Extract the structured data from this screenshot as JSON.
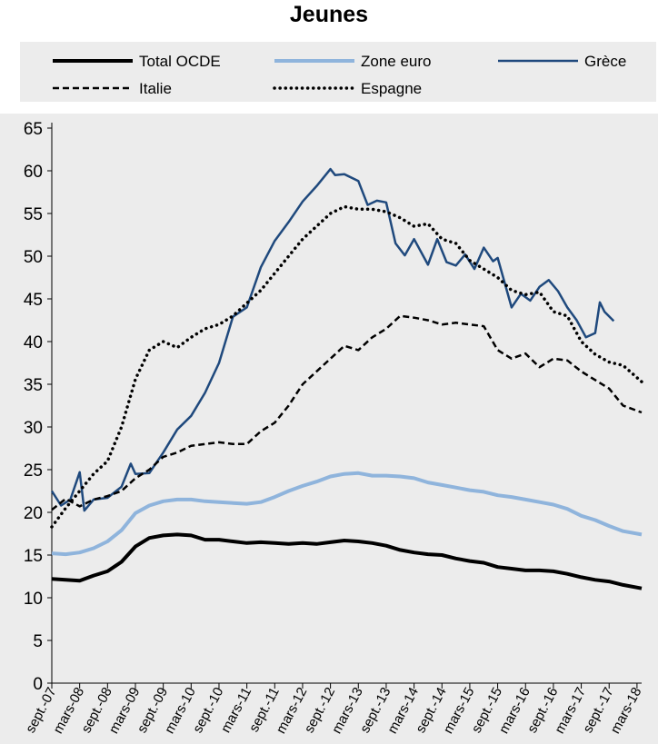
{
  "chart_data": {
    "type": "line",
    "title": "Jeunes",
    "xlabel": "",
    "ylabel": "",
    "ylim": [
      0,
      65
    ],
    "yticks": [
      0,
      5,
      10,
      15,
      20,
      25,
      30,
      35,
      40,
      45,
      50,
      55,
      60,
      65
    ],
    "grid": false,
    "legend_position": "top",
    "x_tick_labels": [
      "sept.-07",
      "mars-08",
      "sept.-08",
      "mars-09",
      "sept.-09",
      "mars-10",
      "sept.-10",
      "mars-11",
      "sept.-11",
      "mars-12",
      "sept.-12",
      "mars-13",
      "sept.-13",
      "mars-14",
      "sept.-14",
      "mars-15",
      "sept.-15",
      "mars-16",
      "sept.-16",
      "mars-17",
      "sept.-17",
      "mars-18"
    ],
    "x_start": "2007-09",
    "x_end": "2018-04",
    "series": [
      {
        "name": "Total OCDE",
        "color": "#000000",
        "style": "solid",
        "weight": "thick",
        "points": [
          [
            "2007-09",
            12.2
          ],
          [
            "2007-12",
            12.1
          ],
          [
            "2008-03",
            12.0
          ],
          [
            "2008-06",
            12.6
          ],
          [
            "2008-09",
            13.1
          ],
          [
            "2008-12",
            14.2
          ],
          [
            "2009-03",
            16.0
          ],
          [
            "2009-06",
            17.0
          ],
          [
            "2009-09",
            17.3
          ],
          [
            "2009-12",
            17.4
          ],
          [
            "2010-03",
            17.3
          ],
          [
            "2010-06",
            16.8
          ],
          [
            "2010-09",
            16.8
          ],
          [
            "2010-12",
            16.6
          ],
          [
            "2011-03",
            16.4
          ],
          [
            "2011-06",
            16.5
          ],
          [
            "2011-09",
            16.4
          ],
          [
            "2011-12",
            16.3
          ],
          [
            "2012-03",
            16.4
          ],
          [
            "2012-06",
            16.3
          ],
          [
            "2012-09",
            16.5
          ],
          [
            "2012-12",
            16.7
          ],
          [
            "2013-03",
            16.6
          ],
          [
            "2013-06",
            16.4
          ],
          [
            "2013-09",
            16.1
          ],
          [
            "2013-12",
            15.6
          ],
          [
            "2014-03",
            15.3
          ],
          [
            "2014-06",
            15.1
          ],
          [
            "2014-09",
            15.0
          ],
          [
            "2014-12",
            14.6
          ],
          [
            "2015-03",
            14.3
          ],
          [
            "2015-06",
            14.1
          ],
          [
            "2015-09",
            13.6
          ],
          [
            "2015-12",
            13.4
          ],
          [
            "2016-03",
            13.2
          ],
          [
            "2016-06",
            13.2
          ],
          [
            "2016-09",
            13.1
          ],
          [
            "2016-12",
            12.8
          ],
          [
            "2017-03",
            12.4
          ],
          [
            "2017-06",
            12.1
          ],
          [
            "2017-09",
            11.9
          ],
          [
            "2017-12",
            11.5
          ],
          [
            "2018-04",
            11.1
          ]
        ]
      },
      {
        "name": "Zone euro",
        "color": "#8fb4dc",
        "style": "solid",
        "weight": "thick",
        "points": [
          [
            "2007-09",
            15.2
          ],
          [
            "2007-12",
            15.1
          ],
          [
            "2008-03",
            15.3
          ],
          [
            "2008-06",
            15.8
          ],
          [
            "2008-09",
            16.6
          ],
          [
            "2008-12",
            17.9
          ],
          [
            "2009-03",
            19.9
          ],
          [
            "2009-06",
            20.8
          ],
          [
            "2009-09",
            21.3
          ],
          [
            "2009-12",
            21.5
          ],
          [
            "2010-03",
            21.5
          ],
          [
            "2010-06",
            21.3
          ],
          [
            "2010-09",
            21.2
          ],
          [
            "2010-12",
            21.1
          ],
          [
            "2011-03",
            21.0
          ],
          [
            "2011-06",
            21.2
          ],
          [
            "2011-09",
            21.8
          ],
          [
            "2011-12",
            22.5
          ],
          [
            "2012-03",
            23.1
          ],
          [
            "2012-06",
            23.6
          ],
          [
            "2012-09",
            24.2
          ],
          [
            "2012-12",
            24.5
          ],
          [
            "2013-03",
            24.6
          ],
          [
            "2013-06",
            24.3
          ],
          [
            "2013-09",
            24.3
          ],
          [
            "2013-12",
            24.2
          ],
          [
            "2014-03",
            24.0
          ],
          [
            "2014-06",
            23.5
          ],
          [
            "2014-09",
            23.2
          ],
          [
            "2014-12",
            22.9
          ],
          [
            "2015-03",
            22.6
          ],
          [
            "2015-06",
            22.4
          ],
          [
            "2015-09",
            22.0
          ],
          [
            "2015-12",
            21.8
          ],
          [
            "2016-03",
            21.5
          ],
          [
            "2016-06",
            21.2
          ],
          [
            "2016-09",
            20.9
          ],
          [
            "2016-12",
            20.4
          ],
          [
            "2017-03",
            19.6
          ],
          [
            "2017-06",
            19.1
          ],
          [
            "2017-09",
            18.4
          ],
          [
            "2017-12",
            17.8
          ],
          [
            "2018-04",
            17.4
          ]
        ]
      },
      {
        "name": "Grèce",
        "color": "#1f497d",
        "style": "solid",
        "weight": "normal",
        "points": [
          [
            "2007-09",
            22.5
          ],
          [
            "2007-11",
            20.8
          ],
          [
            "2008-01",
            21.5
          ],
          [
            "2008-03",
            24.7
          ],
          [
            "2008-04",
            20.2
          ],
          [
            "2008-06",
            21.5
          ],
          [
            "2008-09",
            21.7
          ],
          [
            "2008-12",
            23.0
          ],
          [
            "2009-02",
            25.7
          ],
          [
            "2009-03",
            24.5
          ],
          [
            "2009-06",
            24.6
          ],
          [
            "2009-09",
            27.0
          ],
          [
            "2009-12",
            29.7
          ],
          [
            "2010-03",
            31.3
          ],
          [
            "2010-06",
            34.0
          ],
          [
            "2010-09",
            37.5
          ],
          [
            "2010-12",
            42.9
          ],
          [
            "2011-03",
            44.0
          ],
          [
            "2011-06",
            48.7
          ],
          [
            "2011-09",
            51.8
          ],
          [
            "2011-12",
            54.0
          ],
          [
            "2012-03",
            56.4
          ],
          [
            "2012-06",
            58.2
          ],
          [
            "2012-09",
            60.2
          ],
          [
            "2012-10",
            59.5
          ],
          [
            "2012-12",
            59.6
          ],
          [
            "2013-03",
            58.8
          ],
          [
            "2013-05",
            56.0
          ],
          [
            "2013-07",
            56.5
          ],
          [
            "2013-09",
            56.3
          ],
          [
            "2013-11",
            51.5
          ],
          [
            "2014-01",
            50.1
          ],
          [
            "2014-03",
            52.0
          ],
          [
            "2014-06",
            49.0
          ],
          [
            "2014-08",
            52.0
          ],
          [
            "2014-10",
            49.3
          ],
          [
            "2014-12",
            48.9
          ],
          [
            "2015-02",
            50.2
          ],
          [
            "2015-04",
            48.5
          ],
          [
            "2015-06",
            51.0
          ],
          [
            "2015-08",
            49.4
          ],
          [
            "2015-09",
            49.8
          ],
          [
            "2015-12",
            44.0
          ],
          [
            "2016-02",
            45.6
          ],
          [
            "2016-04",
            44.8
          ],
          [
            "2016-06",
            46.4
          ],
          [
            "2016-08",
            47.2
          ],
          [
            "2016-10",
            45.9
          ],
          [
            "2016-12",
            44.0
          ],
          [
            "2017-02",
            42.5
          ],
          [
            "2017-04",
            40.5
          ],
          [
            "2017-06",
            41.0
          ],
          [
            "2017-07",
            44.6
          ],
          [
            "2017-08",
            43.5
          ],
          [
            "2017-10",
            42.4
          ]
        ]
      },
      {
        "name": "Italie",
        "color": "#000000",
        "style": "dashed",
        "weight": "normal",
        "points": [
          [
            "2007-09",
            20.3
          ],
          [
            "2007-12",
            21.6
          ],
          [
            "2008-03",
            20.7
          ],
          [
            "2008-06",
            21.5
          ],
          [
            "2008-09",
            21.9
          ],
          [
            "2008-12",
            22.5
          ],
          [
            "2009-03",
            24.0
          ],
          [
            "2009-06",
            25.0
          ],
          [
            "2009-09",
            26.5
          ],
          [
            "2009-12",
            27.0
          ],
          [
            "2010-03",
            27.8
          ],
          [
            "2010-06",
            28.0
          ],
          [
            "2010-09",
            28.2
          ],
          [
            "2010-12",
            28.0
          ],
          [
            "2011-03",
            28.0
          ],
          [
            "2011-06",
            29.5
          ],
          [
            "2011-09",
            30.5
          ],
          [
            "2011-12",
            32.5
          ],
          [
            "2012-03",
            35.0
          ],
          [
            "2012-06",
            36.5
          ],
          [
            "2012-09",
            38.0
          ],
          [
            "2012-12",
            39.5
          ],
          [
            "2013-03",
            39.0
          ],
          [
            "2013-06",
            40.5
          ],
          [
            "2013-09",
            41.5
          ],
          [
            "2013-12",
            43.0
          ],
          [
            "2014-03",
            42.8
          ],
          [
            "2014-06",
            42.5
          ],
          [
            "2014-09",
            42.0
          ],
          [
            "2014-12",
            42.2
          ],
          [
            "2015-03",
            42.0
          ],
          [
            "2015-06",
            41.8
          ],
          [
            "2015-09",
            39.0
          ],
          [
            "2015-12",
            38.0
          ],
          [
            "2016-03",
            38.6
          ],
          [
            "2016-06",
            37.0
          ],
          [
            "2016-09",
            38.0
          ],
          [
            "2016-12",
            37.8
          ],
          [
            "2017-03",
            36.5
          ],
          [
            "2017-06",
            35.5
          ],
          [
            "2017-09",
            34.5
          ],
          [
            "2017-12",
            32.5
          ],
          [
            "2018-04",
            31.7
          ]
        ]
      },
      {
        "name": "Espagne",
        "color": "#000000",
        "style": "dotted",
        "weight": "normal",
        "points": [
          [
            "2007-09",
            18.3
          ],
          [
            "2007-12",
            20.5
          ],
          [
            "2008-03",
            22.5
          ],
          [
            "2008-06",
            24.5
          ],
          [
            "2008-09",
            26.0
          ],
          [
            "2008-12",
            30.0
          ],
          [
            "2009-03",
            35.6
          ],
          [
            "2009-06",
            39.0
          ],
          [
            "2009-09",
            40.0
          ],
          [
            "2009-12",
            39.3
          ],
          [
            "2010-03",
            40.5
          ],
          [
            "2010-06",
            41.5
          ],
          [
            "2010-09",
            42.0
          ],
          [
            "2010-12",
            43.0
          ],
          [
            "2011-03",
            44.5
          ],
          [
            "2011-06",
            46.0
          ],
          [
            "2011-09",
            48.0
          ],
          [
            "2011-12",
            50.0
          ],
          [
            "2012-03",
            52.0
          ],
          [
            "2012-06",
            53.5
          ],
          [
            "2012-09",
            55.0
          ],
          [
            "2012-12",
            55.8
          ],
          [
            "2013-03",
            55.5
          ],
          [
            "2013-06",
            55.5
          ],
          [
            "2013-09",
            55.2
          ],
          [
            "2013-12",
            54.5
          ],
          [
            "2014-03",
            53.5
          ],
          [
            "2014-06",
            53.8
          ],
          [
            "2014-09",
            52.0
          ],
          [
            "2014-12",
            51.5
          ],
          [
            "2015-03",
            49.5
          ],
          [
            "2015-06",
            48.5
          ],
          [
            "2015-09",
            47.5
          ],
          [
            "2015-12",
            46.0
          ],
          [
            "2016-03",
            45.5
          ],
          [
            "2016-06",
            45.8
          ],
          [
            "2016-09",
            43.5
          ],
          [
            "2016-12",
            43.0
          ],
          [
            "2017-03",
            40.0
          ],
          [
            "2017-06",
            38.5
          ],
          [
            "2017-09",
            37.6
          ],
          [
            "2017-12",
            37.2
          ],
          [
            "2018-04",
            35.3
          ]
        ]
      }
    ]
  }
}
